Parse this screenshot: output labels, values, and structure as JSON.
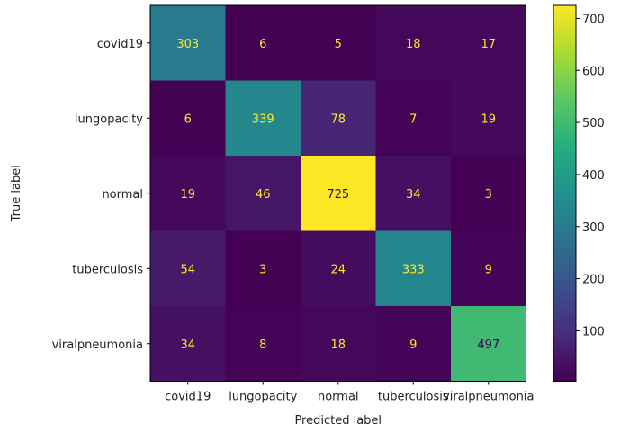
{
  "chart_data": {
    "type": "heatmap",
    "title": "",
    "xlabel": "Predicted label",
    "ylabel": "True label",
    "x_categories": [
      "covid19",
      "lungopacity",
      "normal",
      "tuberculosis",
      "viralpneumonia"
    ],
    "y_categories": [
      "covid19",
      "lungopacity",
      "normal",
      "tuberculosis",
      "viralpneumonia"
    ],
    "values": [
      [
        303,
        6,
        5,
        18,
        17
      ],
      [
        6,
        339,
        78,
        7,
        19
      ],
      [
        19,
        46,
        725,
        34,
        3
      ],
      [
        54,
        3,
        24,
        333,
        9
      ],
      [
        34,
        8,
        18,
        9,
        497
      ]
    ],
    "colormap": "viridis",
    "colorbar": {
      "min": 3,
      "max": 725,
      "ticks": [
        100,
        200,
        300,
        400,
        500,
        600,
        700
      ]
    },
    "text_colors": {
      "light": "#fde725",
      "dark": "#440154"
    },
    "grid": false
  }
}
